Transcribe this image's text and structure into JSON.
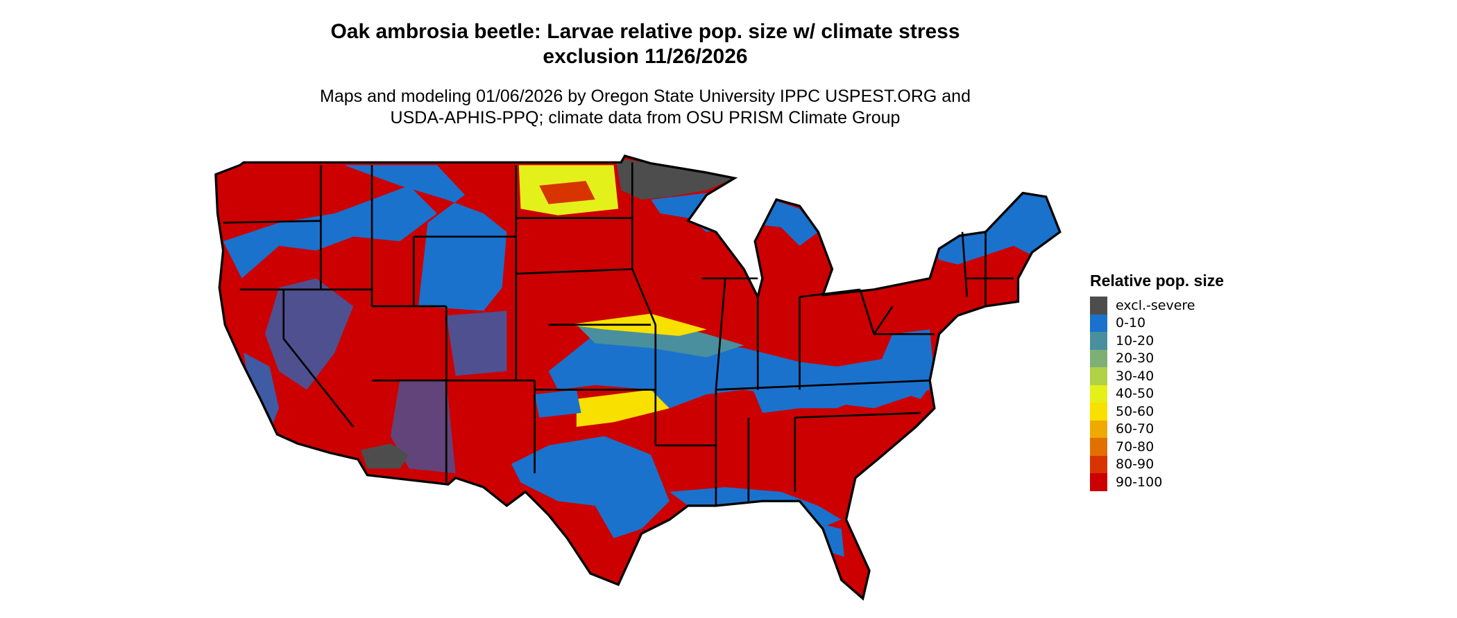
{
  "title": {
    "line1": "Oak ambrosia beetle: Larvae relative pop. size w/ climate stress",
    "line2": "exclusion 11/26/2026"
  },
  "subtitle": {
    "line1": "Maps and modeling 01/06/2026 by Oregon State University IPPC USPEST.ORG and",
    "line2": "USDA-APHIS-PPQ; climate data from OSU PRISM Climate Group"
  },
  "legend": {
    "title": "Relative pop. size",
    "items": [
      {
        "label": "excl.-severe",
        "color": "#4d4d4d"
      },
      {
        "label": "0-10",
        "color": "#1a72cc"
      },
      {
        "label": "10-20",
        "color": "#4a8f9e"
      },
      {
        "label": "20-30",
        "color": "#7eb075"
      },
      {
        "label": "30-40",
        "color": "#b1d146"
      },
      {
        "label": "40-50",
        "color": "#e4f01a"
      },
      {
        "label": "50-60",
        "color": "#f8e000"
      },
      {
        "label": "60-70",
        "color": "#efa900"
      },
      {
        "label": "70-80",
        "color": "#e27000"
      },
      {
        "label": "80-90",
        "color": "#d83400"
      },
      {
        "label": "90-100",
        "color": "#cc0000"
      }
    ]
  }
}
